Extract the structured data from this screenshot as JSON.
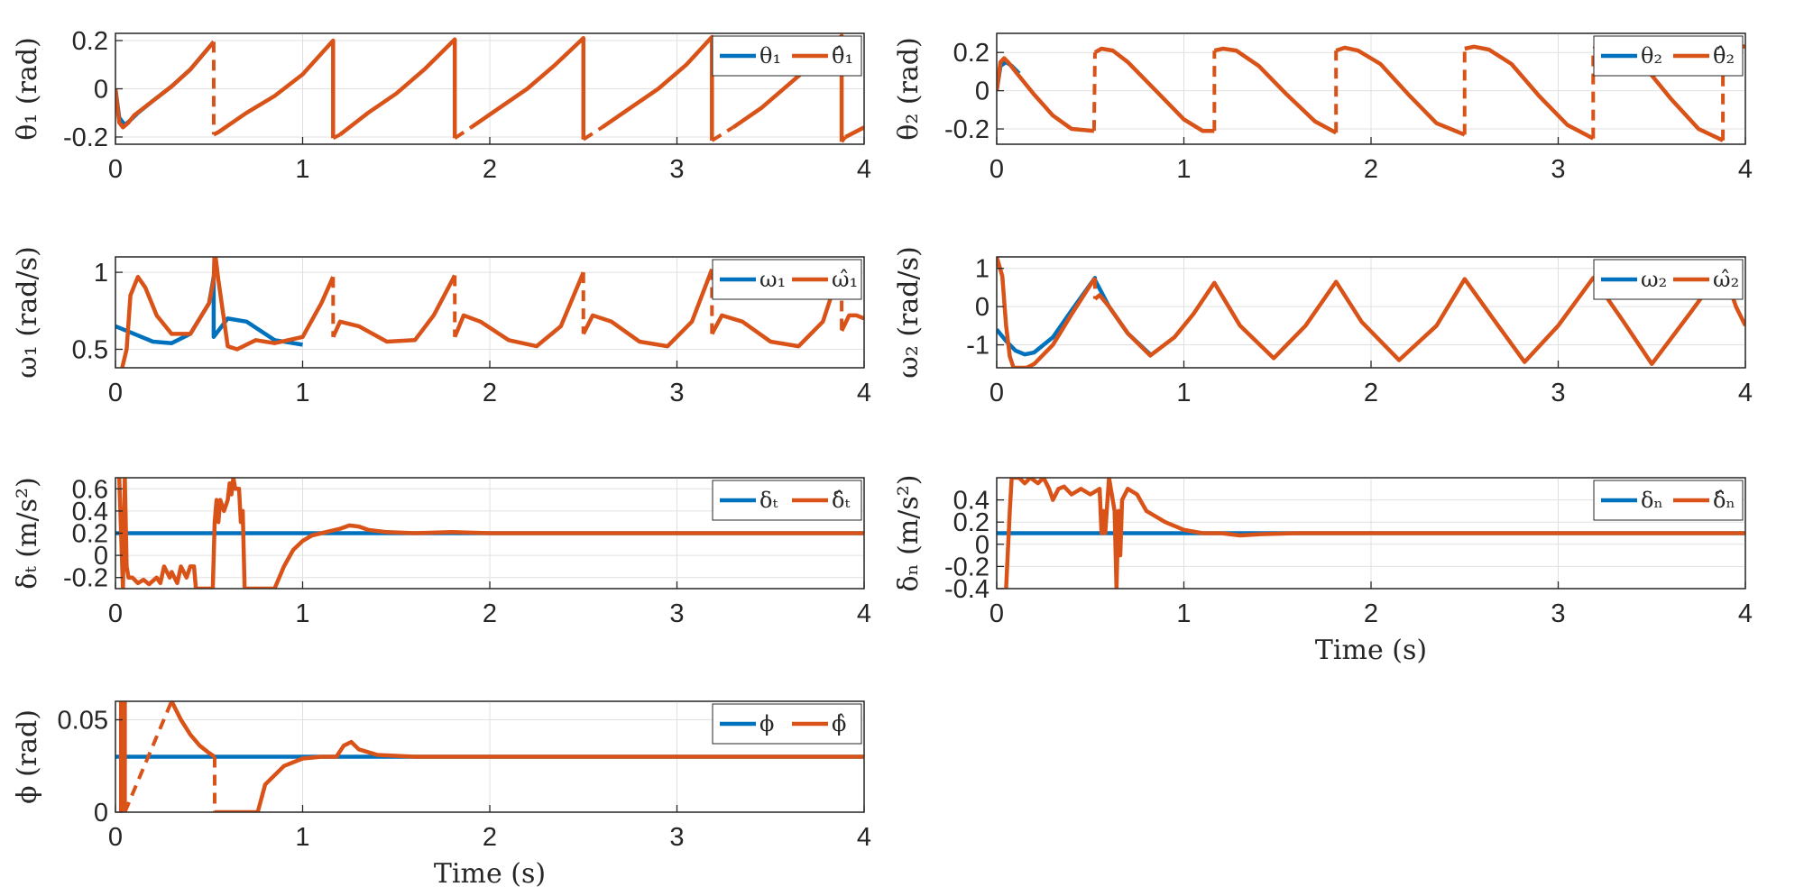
{
  "colors": {
    "true": "#0072BD",
    "estimate": "#D95319"
  },
  "chart_data": [
    {
      "id": "theta1",
      "type": "line",
      "ylabel": "θ₁ (rad)",
      "xlabel": "",
      "xlim": [
        0,
        4
      ],
      "ylim": [
        -0.23,
        0.23
      ],
      "xticks": [
        "0",
        "1",
        "2",
        "3",
        "4"
      ],
      "yticks": [
        {
          "v": 0.2,
          "t": "0.2"
        },
        {
          "v": 0,
          "t": "0"
        },
        {
          "v": -0.2,
          "t": "-0.2"
        }
      ],
      "grid": true,
      "legend_position": "top-right",
      "series": [
        {
          "name": "θ₁",
          "color_key": "true",
          "x": [
            0,
            0.02,
            0.05,
            0.08,
            0.12,
            0.2,
            0.3,
            0.4,
            0.525
          ],
          "y": [
            0,
            -0.12,
            -0.15,
            -0.13,
            -0.1,
            -0.05,
            0.01,
            0.08,
            0.195
          ]
        },
        {
          "name": "θ̂₁",
          "color_key": "estimate",
          "x": [
            0,
            0.02,
            0.04,
            0.07,
            0.1,
            0.2,
            0.3,
            0.4,
            0.525,
            0.525,
            0.55,
            0.7,
            0.85,
            1.0,
            1.163,
            1.163,
            1.2,
            1.35,
            1.5,
            1.65,
            1.813,
            1.813,
            1.9,
            2.05,
            2.2,
            2.35,
            2.5,
            2.5,
            2.6,
            2.75,
            2.9,
            3.05,
            3.187,
            3.187,
            3.3,
            3.45,
            3.6,
            3.75,
            3.88,
            3.88,
            3.9,
            4.0
          ],
          "y": [
            0,
            -0.14,
            -0.16,
            -0.14,
            -0.11,
            -0.05,
            0.01,
            0.08,
            0.195,
            -0.19,
            -0.18,
            -0.1,
            -0.03,
            0.06,
            0.2,
            -0.205,
            -0.19,
            -0.1,
            -0.02,
            0.08,
            0.205,
            -0.205,
            -0.16,
            -0.08,
            0.0,
            0.1,
            0.21,
            -0.21,
            -0.16,
            -0.08,
            0.0,
            0.1,
            0.215,
            -0.215,
            -0.16,
            -0.08,
            0.02,
            0.12,
            0.22,
            -0.22,
            -0.2,
            -0.16
          ],
          "jump_after": [
            8,
            15,
            21,
            27,
            33,
            39
          ]
        }
      ]
    },
    {
      "id": "theta2",
      "type": "line",
      "ylabel": "θ₂ (rad)",
      "xlabel": "",
      "xlim": [
        0,
        4
      ],
      "ylim": [
        -0.28,
        0.3
      ],
      "xticks": [
        "0",
        "1",
        "2",
        "3",
        "4"
      ],
      "yticks": [
        {
          "v": 0.2,
          "t": "0.2"
        },
        {
          "v": 0,
          "t": "0"
        },
        {
          "v": -0.2,
          "t": "-0.2"
        }
      ],
      "grid": true,
      "legend_position": "top-right",
      "series": [
        {
          "name": "θ₂",
          "color_key": "true",
          "x": [
            0,
            0.02,
            0.05,
            0.08,
            0.12
          ],
          "y": [
            0,
            0.13,
            0.15,
            0.13,
            0.09
          ]
        },
        {
          "name": "θ̂₂",
          "color_key": "estimate",
          "x": [
            0,
            0.02,
            0.04,
            0.06,
            0.1,
            0.2,
            0.3,
            0.4,
            0.52,
            0.525,
            0.56,
            0.62,
            0.7,
            0.85,
            1.0,
            1.1,
            1.163,
            1.163,
            1.21,
            1.28,
            1.4,
            1.55,
            1.7,
            1.813,
            1.813,
            1.86,
            1.93,
            2.05,
            2.2,
            2.35,
            2.5,
            2.5,
            2.55,
            2.63,
            2.75,
            2.9,
            3.05,
            3.187,
            3.187,
            3.24,
            3.32,
            3.45,
            3.6,
            3.75,
            3.88,
            3.88,
            3.9,
            4.0
          ],
          "y": [
            0,
            0.15,
            0.17,
            0.15,
            0.1,
            -0.02,
            -0.13,
            -0.2,
            -0.21,
            0.2,
            0.22,
            0.21,
            0.15,
            0.0,
            -0.15,
            -0.21,
            -0.21,
            0.21,
            0.22,
            0.21,
            0.13,
            -0.02,
            -0.16,
            -0.22,
            0.21,
            0.225,
            0.21,
            0.14,
            -0.02,
            -0.17,
            -0.23,
            0.22,
            0.23,
            0.215,
            0.14,
            -0.03,
            -0.18,
            -0.25,
            0.22,
            0.235,
            0.22,
            0.14,
            -0.04,
            -0.2,
            -0.26,
            0.23,
            0.24,
            0.23
          ],
          "jump_after": [
            8,
            16,
            23,
            30,
            37,
            44
          ]
        }
      ]
    },
    {
      "id": "omega1",
      "type": "line",
      "ylabel": "ω₁ (rad/s)",
      "xlabel": "",
      "xlim": [
        0,
        4
      ],
      "ylim": [
        0.38,
        1.1
      ],
      "xticks": [
        "0",
        "1",
        "2",
        "3",
        "4"
      ],
      "yticks": [
        {
          "v": 1,
          "t": "1"
        },
        {
          "v": 0.5,
          "t": "0.5"
        }
      ],
      "grid": true,
      "legend_position": "top-right",
      "series": [
        {
          "name": "ω₁",
          "color_key": "true",
          "x": [
            0,
            0.1,
            0.2,
            0.3,
            0.4,
            0.5,
            0.525,
            0.525,
            0.6,
            0.7,
            0.85,
            1.0
          ],
          "y": [
            0.65,
            0.6,
            0.55,
            0.54,
            0.6,
            0.8,
            0.97,
            0.58,
            0.7,
            0.68,
            0.56,
            0.53
          ]
        },
        {
          "name": "ω̂₁",
          "color_key": "estimate",
          "x": [
            0,
            0.06,
            0.08,
            0.12,
            0.16,
            0.22,
            0.3,
            0.4,
            0.5,
            0.525,
            0.53,
            0.55,
            0.6,
            0.65,
            0.75,
            0.85,
            1.0,
            1.1,
            1.163,
            1.163,
            1.2,
            1.3,
            1.45,
            1.6,
            1.7,
            1.813,
            1.813,
            1.86,
            1.95,
            2.1,
            2.25,
            2.38,
            2.5,
            2.5,
            2.55,
            2.65,
            2.8,
            2.95,
            3.08,
            3.187,
            3.187,
            3.24,
            3.35,
            3.5,
            3.65,
            3.78,
            3.88,
            3.88,
            3.92,
            3.96,
            4.0
          ],
          "y": [
            0.2,
            0.5,
            0.85,
            0.97,
            0.9,
            0.72,
            0.6,
            0.6,
            0.8,
            0.95,
            1.15,
            0.95,
            0.52,
            0.5,
            0.56,
            0.54,
            0.58,
            0.8,
            0.97,
            0.58,
            0.68,
            0.65,
            0.55,
            0.56,
            0.72,
            0.98,
            0.58,
            0.72,
            0.68,
            0.56,
            0.52,
            0.65,
            1.0,
            0.6,
            0.72,
            0.68,
            0.55,
            0.52,
            0.68,
            1.02,
            0.6,
            0.72,
            0.68,
            0.55,
            0.52,
            0.68,
            1.05,
            0.62,
            0.72,
            0.72,
            0.7
          ],
          "jump_after": [
            18,
            25,
            32,
            39,
            46
          ]
        }
      ]
    },
    {
      "id": "omega2",
      "type": "line",
      "ylabel": "ω₂ (rad/s)",
      "xlabel": "",
      "xlim": [
        0,
        4
      ],
      "ylim": [
        -1.6,
        1.3
      ],
      "xticks": [
        "0",
        "1",
        "2",
        "3",
        "4"
      ],
      "yticks": [
        {
          "v": 1,
          "t": "1"
        },
        {
          "v": 0,
          "t": "0"
        },
        {
          "v": -1,
          "t": "-1"
        }
      ],
      "grid": true,
      "legend_position": "top-right",
      "series": [
        {
          "name": "ω₂",
          "color_key": "true",
          "x": [
            0,
            0.05,
            0.1,
            0.15,
            0.2,
            0.3,
            0.4,
            0.525,
            0.525,
            0.6,
            0.7,
            0.82
          ],
          "y": [
            -0.6,
            -0.9,
            -1.15,
            -1.25,
            -1.2,
            -0.8,
            -0.1,
            0.75,
            0.7,
            0.0,
            -0.7,
            -1.25
          ]
        },
        {
          "name": "ω̂₂",
          "color_key": "estimate",
          "x": [
            0,
            0.03,
            0.05,
            0.07,
            0.09,
            0.12,
            0.16,
            0.2,
            0.3,
            0.4,
            0.525,
            0.525,
            0.55,
            0.6,
            0.7,
            0.82,
            0.95,
            1.05,
            1.163,
            1.3,
            1.48,
            1.65,
            1.813,
            1.95,
            2.15,
            2.35,
            2.5,
            2.65,
            2.82,
            3.0,
            3.187,
            3.35,
            3.5,
            3.7,
            3.88,
            3.95,
            4.0
          ],
          "y": [
            1.3,
            0.8,
            -0.5,
            -1.3,
            -1.6,
            -1.6,
            -1.6,
            -1.5,
            -1.0,
            -0.2,
            0.75,
            0.2,
            0.3,
            0.0,
            -0.7,
            -1.28,
            -0.8,
            -0.2,
            0.62,
            -0.5,
            -1.35,
            -0.5,
            0.65,
            -0.4,
            -1.4,
            -0.5,
            0.72,
            -0.3,
            -1.45,
            -0.5,
            0.75,
            -0.4,
            -1.5,
            -0.2,
            1.0,
            0.0,
            -0.5
          ],
          "jump_after": [
            10
          ]
        }
      ]
    },
    {
      "id": "delta_t",
      "type": "line",
      "ylabel": "δₜ (m/s²)",
      "xlabel": "",
      "xlim": [
        0,
        4
      ],
      "ylim": [
        -0.3,
        0.7
      ],
      "xticks": [
        "0",
        "1",
        "2",
        "3",
        "4"
      ],
      "yticks": [
        {
          "v": 0.6,
          "t": "0.6"
        },
        {
          "v": 0.4,
          "t": "0.4"
        },
        {
          "v": 0.2,
          "t": "0.2"
        },
        {
          "v": 0,
          "t": "0"
        },
        {
          "v": -0.2,
          "t": "-0.2"
        }
      ],
      "grid": true,
      "legend_position": "top-right",
      "series": [
        {
          "name": "δₜ",
          "color_key": "true",
          "x": [
            0,
            4.0
          ],
          "y": [
            0.2,
            0.2
          ]
        },
        {
          "name": "δ̂ₜ",
          "color_key": "estimate",
          "x": [
            0.02,
            0.02,
            0.04,
            0.05,
            0.06,
            0.07,
            0.09,
            0.12,
            0.15,
            0.18,
            0.22,
            0.24,
            0.26,
            0.29,
            0.3,
            0.33,
            0.35,
            0.38,
            0.4,
            0.42,
            0.43,
            0.44,
            0.52,
            0.53,
            0.54,
            0.55,
            0.56,
            0.58,
            0.6,
            0.61,
            0.62,
            0.63,
            0.64,
            0.66,
            0.67,
            0.68,
            0.69,
            0.7,
            0.8,
            0.85,
            0.9,
            0.95,
            1.0,
            1.05,
            1.1,
            1.15,
            1.2,
            1.25,
            1.3,
            1.35,
            1.45,
            1.6,
            1.8,
            2.0,
            2.5,
            3.0,
            3.5,
            4.0
          ],
          "y": [
            0.7,
            0.7,
            -0.3,
            0.7,
            -0.1,
            -0.2,
            -0.2,
            -0.25,
            -0.22,
            -0.26,
            -0.2,
            -0.25,
            -0.1,
            -0.2,
            -0.15,
            -0.25,
            -0.1,
            -0.2,
            -0.1,
            -0.1,
            -0.3,
            -0.3,
            -0.3,
            0.3,
            0.5,
            0.3,
            0.5,
            0.4,
            0.5,
            0.65,
            0.55,
            0.7,
            0.6,
            0.6,
            0.3,
            0.4,
            -0.3,
            -0.3,
            -0.3,
            -0.3,
            -0.1,
            0.05,
            0.13,
            0.18,
            0.2,
            0.22,
            0.24,
            0.27,
            0.26,
            0.23,
            0.21,
            0.2,
            0.21,
            0.2,
            0.2,
            0.2,
            0.2,
            0.2
          ]
        }
      ]
    },
    {
      "id": "delta_n",
      "type": "line",
      "ylabel": "δₙ (m/s²)",
      "xlabel": "Time (s)",
      "xlim": [
        0,
        4
      ],
      "ylim": [
        -0.4,
        0.6
      ],
      "xticks": [
        "0",
        "1",
        "2",
        "3",
        "4"
      ],
      "yticks": [
        {
          "v": 0.4,
          "t": "0.4"
        },
        {
          "v": 0.2,
          "t": "0.2"
        },
        {
          "v": 0,
          "t": "0"
        },
        {
          "v": -0.2,
          "t": "-0.2"
        },
        {
          "v": -0.4,
          "t": "-0.4"
        }
      ],
      "grid": true,
      "legend_position": "top-right",
      "series": [
        {
          "name": "δₙ",
          "color_key": "true",
          "x": [
            0,
            4.0
          ],
          "y": [
            0.1,
            0.1
          ]
        },
        {
          "name": "δ̂ₙ",
          "color_key": "estimate",
          "x": [
            0.05,
            0.05,
            0.07,
            0.08,
            0.1,
            0.12,
            0.15,
            0.18,
            0.22,
            0.25,
            0.28,
            0.3,
            0.33,
            0.36,
            0.4,
            0.45,
            0.5,
            0.55,
            0.56,
            0.57,
            0.58,
            0.6,
            0.63,
            0.64,
            0.65,
            0.66,
            0.67,
            0.7,
            0.75,
            0.8,
            0.9,
            1.0,
            1.1,
            1.2,
            1.3,
            1.4,
            1.6,
            2.0,
            4.0
          ],
          "y": [
            -0.4,
            -0.4,
            0.3,
            0.6,
            0.6,
            0.6,
            0.55,
            0.6,
            0.55,
            0.6,
            0.5,
            0.4,
            0.5,
            0.52,
            0.45,
            0.5,
            0.45,
            0.5,
            0.1,
            0.3,
            0.1,
            0.6,
            0.3,
            -0.4,
            0.3,
            -0.1,
            0.4,
            0.5,
            0.45,
            0.3,
            0.2,
            0.13,
            0.1,
            0.1,
            0.08,
            0.09,
            0.1,
            0.1,
            0.1
          ]
        }
      ]
    },
    {
      "id": "phi",
      "type": "line",
      "ylabel": "ϕ (rad)",
      "xlabel": "Time (s)",
      "xlim": [
        0,
        4
      ],
      "ylim": [
        0,
        0.06
      ],
      "xticks": [
        "0",
        "1",
        "2",
        "3",
        "4"
      ],
      "yticks": [
        {
          "v": 0.05,
          "t": "0.05"
        },
        {
          "v": 0,
          "t": "0"
        }
      ],
      "grid": true,
      "legend_position": "top-right",
      "series": [
        {
          "name": "ϕ",
          "color_key": "true",
          "x": [
            0,
            4.0
          ],
          "y": [
            0.03,
            0.03
          ]
        },
        {
          "name": "ϕ̂",
          "color_key": "estimate",
          "x": [
            0.03,
            0.03,
            0.05,
            0.05,
            0.3,
            0.35,
            0.4,
            0.45,
            0.5,
            0.53,
            0.53,
            0.76,
            0.8,
            0.9,
            1.0,
            1.1,
            1.18,
            1.22,
            1.26,
            1.3,
            1.4,
            1.6,
            2.0,
            4.0
          ],
          "y": [
            0.0,
            0.06,
            0.06,
            0.0,
            0.06,
            0.05,
            0.042,
            0.036,
            0.032,
            0.03,
            0.0,
            0.0,
            0.015,
            0.025,
            0.029,
            0.03,
            0.03,
            0.036,
            0.038,
            0.034,
            0.031,
            0.03,
            0.03,
            0.03
          ],
          "jump_after": [
            1,
            3,
            9
          ]
        }
      ]
    }
  ]
}
